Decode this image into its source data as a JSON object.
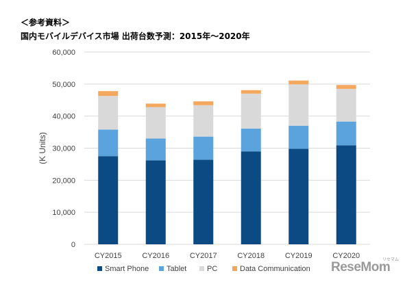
{
  "header": {
    "ref_label": "＜参考資料＞",
    "title": "国内モバイルデバイス市場 出荷台数予測：2015年～2020年"
  },
  "watermark": {
    "text": "ReseMom",
    "sub": "リセマム"
  },
  "colors": {
    "smart_phone": "#0b4a82",
    "tablet": "#5aa3dc",
    "pc": "#d9d9d9",
    "data_communication": "#f4a85e",
    "gridline": "#d9d9d9"
  },
  "chart_data": {
    "type": "bar",
    "stacked": true,
    "title": "",
    "xlabel": "",
    "ylabel": "(K Units)",
    "ylim": [
      0,
      60000
    ],
    "yticks": [
      0,
      10000,
      20000,
      30000,
      40000,
      50000,
      60000
    ],
    "ytick_labels": [
      "0",
      "10,000",
      "20,000",
      "30,000",
      "40,000",
      "50,000",
      "60,000"
    ],
    "grid": true,
    "legend_position": "bottom",
    "categories": [
      "CY2015",
      "CY2016",
      "CY2017",
      "CY2018",
      "CY2019",
      "CY2020"
    ],
    "series": [
      {
        "name": "Smart Phone",
        "color_key": "smart_phone",
        "values": [
          27500,
          26200,
          26400,
          29000,
          29800,
          30900
        ]
      },
      {
        "name": "Tablet",
        "color_key": "tablet",
        "values": [
          8300,
          6800,
          7200,
          7100,
          7200,
          7400
        ]
      },
      {
        "name": "PC",
        "color_key": "pc",
        "values": [
          10500,
          9800,
          9800,
          10900,
          12900,
          10200
        ]
      },
      {
        "name": "Data Communication",
        "color_key": "data_communication",
        "values": [
          1500,
          1100,
          1200,
          1100,
          1200,
          1200
        ]
      }
    ]
  }
}
